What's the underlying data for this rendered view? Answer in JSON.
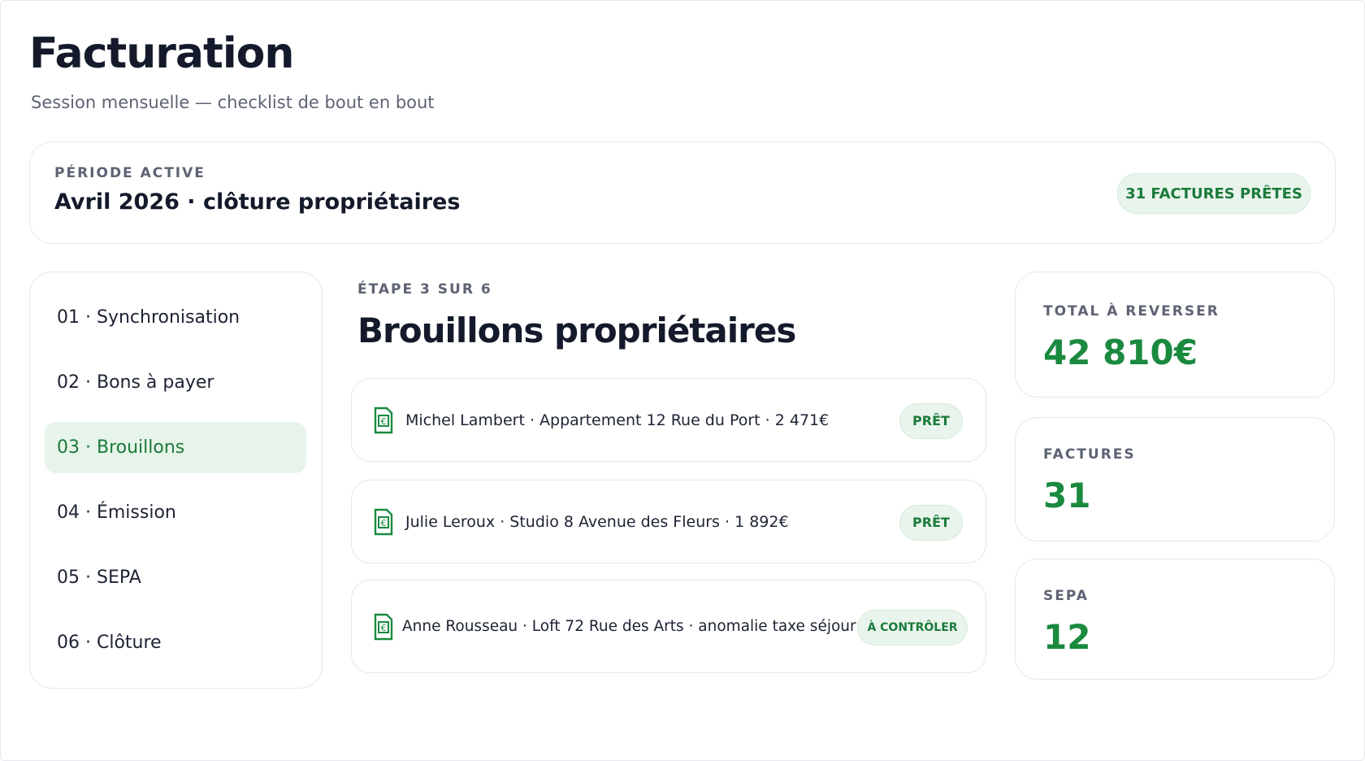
{
  "header": {
    "title": "Facturation",
    "subtitle": "Session mensuelle — checklist de bout en bout"
  },
  "period": {
    "label": "PÉRIODE ACTIVE",
    "value": "Avril 2026 · clôture propriétaires",
    "badge": "31 FACTURES PRÊTES"
  },
  "steps": [
    {
      "label": "01 · Synchronisation",
      "active": false
    },
    {
      "label": "02 · Bons à payer",
      "active": false
    },
    {
      "label": "03 · Brouillons",
      "active": true
    },
    {
      "label": "04 · Émission",
      "active": false
    },
    {
      "label": "05 · SEPA",
      "active": false
    },
    {
      "label": "06 · Clôture",
      "active": false
    }
  ],
  "main": {
    "eyebrow": "ÉTAPE 3 SUR 6",
    "title": "Brouillons propriétaires",
    "items": [
      {
        "text": "Michel Lambert · Appartement 12 Rue du Port · 2 471€",
        "status": "PRÊT"
      },
      {
        "text": "Julie Leroux · Studio 8 Avenue des Fleurs · 1 892€",
        "status": "PRÊT"
      },
      {
        "text": "Anne Rousseau · Loft 72 Rue des Arts · anomalie taxe séjour",
        "status": "À CONTRÔLER"
      }
    ]
  },
  "stats": [
    {
      "label": "TOTAL À REVERSER",
      "value": "42 810€"
    },
    {
      "label": "FACTURES",
      "value": "31"
    },
    {
      "label": "SEPA",
      "value": "12"
    }
  ]
}
